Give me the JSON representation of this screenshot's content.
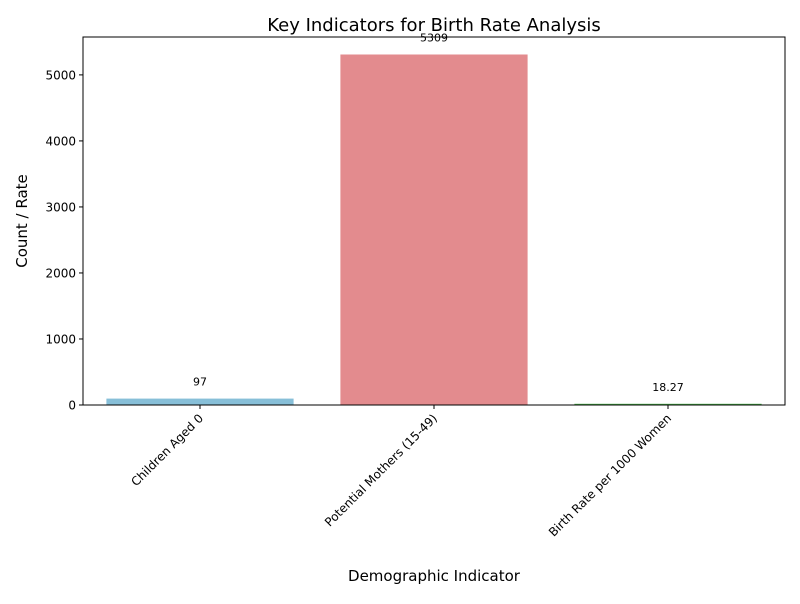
{
  "chart_data": {
    "type": "bar",
    "title": "Key Indicators for Birth Rate Analysis",
    "xlabel": "Demographic Indicator",
    "ylabel": "Count / Rate",
    "categories": [
      "Children Aged 0",
      "Potential Mothers (15-49)",
      "Birth Rate per 1000 Women"
    ],
    "values": [
      97,
      5309,
      18.27
    ],
    "value_labels": [
      "97",
      "5309",
      "18.27"
    ],
    "colors": [
      "#87bfd8",
      "#e38b8e",
      "#4cb84c"
    ],
    "ylim": [
      0,
      5574
    ],
    "yticks": [
      0,
      1000,
      2000,
      3000,
      4000,
      5000
    ],
    "ytick_labels": [
      "0",
      "1000",
      "2000",
      "3000",
      "4000",
      "5000"
    ],
    "grid": false,
    "legend": "none"
  }
}
